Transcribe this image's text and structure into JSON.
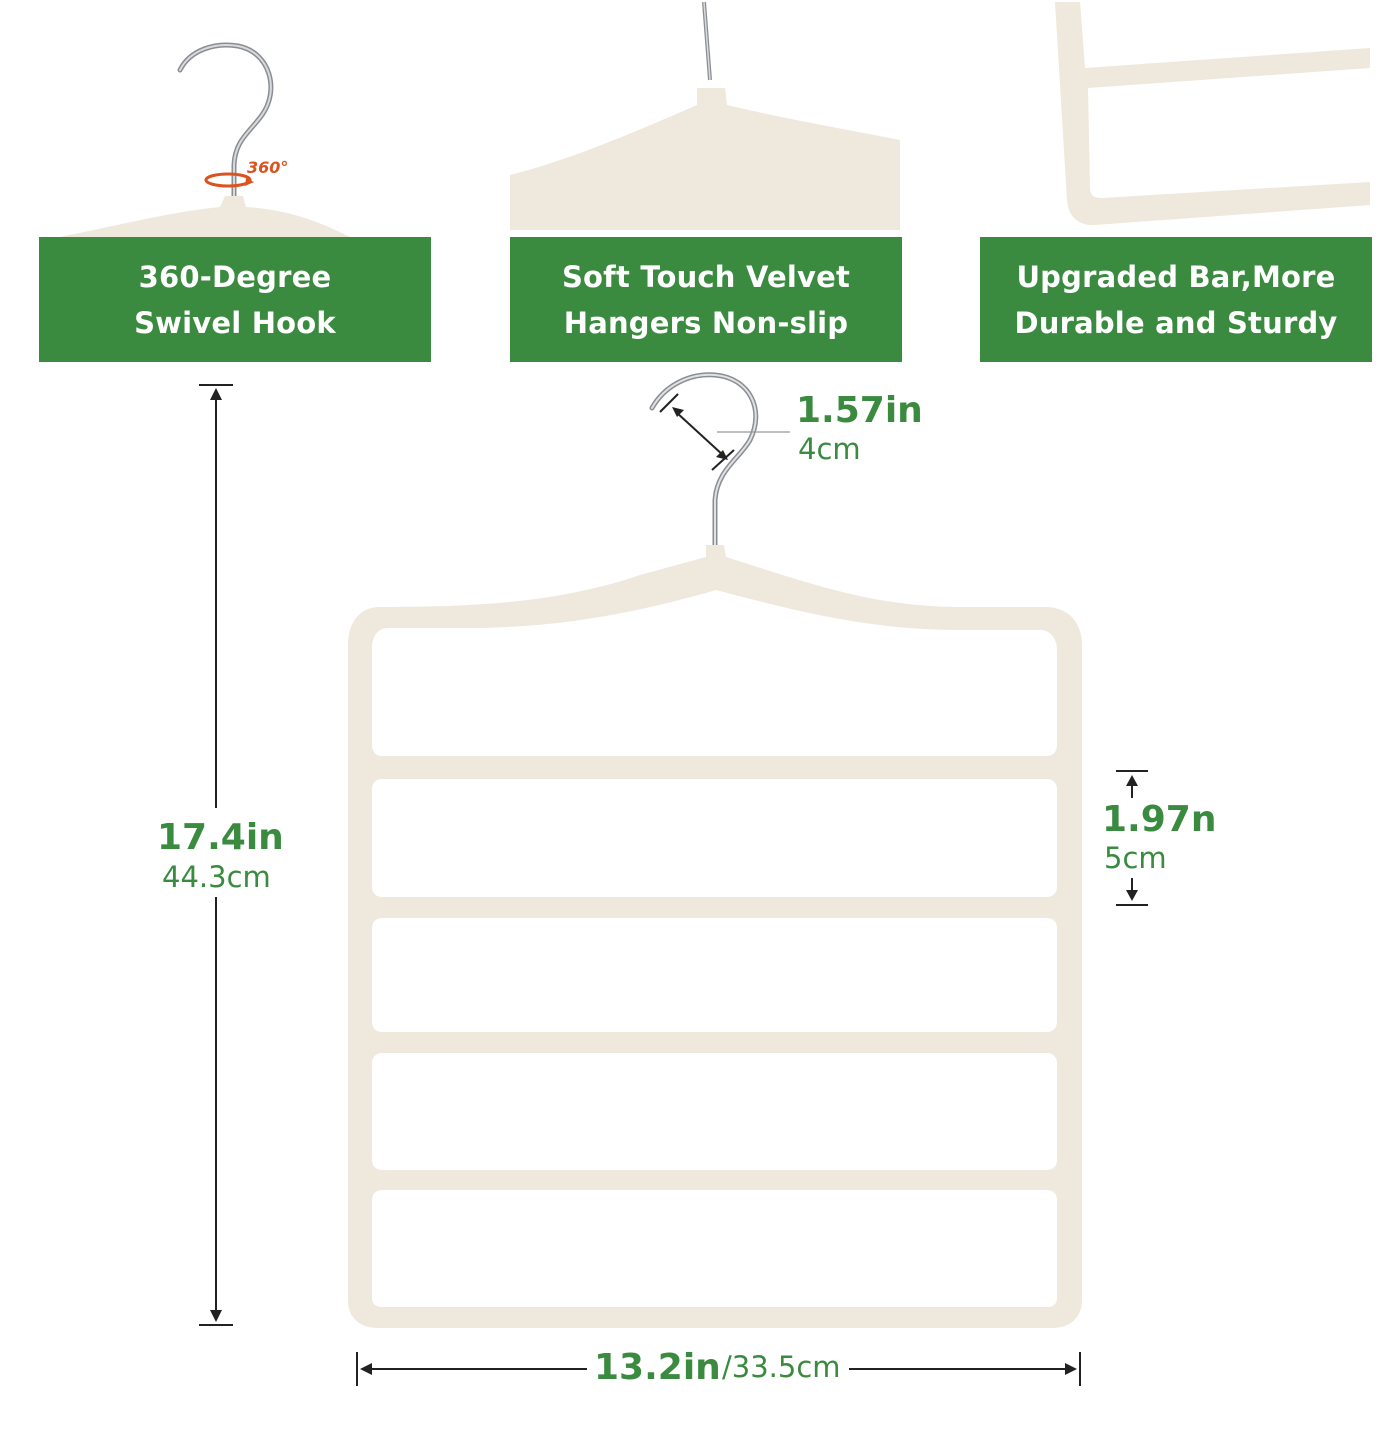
{
  "features": [
    {
      "line1": "360-Degree",
      "line2": "Swivel Hook"
    },
    {
      "line1": "Soft Touch Velvet",
      "line2": "Hangers Non-slip"
    },
    {
      "line1": "Upgraded Bar,More",
      "line2": "Durable and Sturdy"
    }
  ],
  "swivel_badge": "360°",
  "dimensions": {
    "hook": {
      "in": "1.57in",
      "cm": "4cm"
    },
    "height": {
      "in": "17.4in",
      "cm": "44.3cm"
    },
    "bar_spacing": {
      "in": "1.97n",
      "cm": "5cm"
    },
    "width": {
      "in": "13.2in",
      "cm": "/33.5cm"
    }
  },
  "colors": {
    "accent_green": "#3a8b3f",
    "velvet_ivory": "#efe8dc",
    "badge_orange": "#d9541e"
  }
}
